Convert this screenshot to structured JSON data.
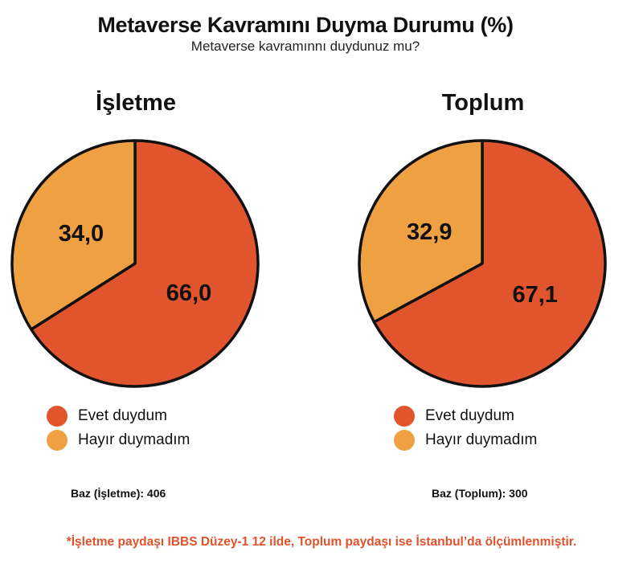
{
  "header": {
    "title": "Metaverse Kavramını Duyma Durumu (%)",
    "subtitle": "Metaverse kavramınnı duydunuz mu?"
  },
  "colors": {
    "yes": "#e1552e",
    "no": "#eea042",
    "outline": "#111111",
    "footnote": "#e0522b"
  },
  "chart_data": [
    {
      "type": "pie",
      "title": "İşletme",
      "categories": [
        "Evet duydum",
        "Hayır duymadım"
      ],
      "values": [
        66.0,
        34.0
      ],
      "value_labels": [
        "66,0",
        "34,0"
      ],
      "legend": [
        "Evet duydum",
        "Hayır duymadım"
      ],
      "base": "Baz (İşletme): 406"
    },
    {
      "type": "pie",
      "title": "Toplum",
      "categories": [
        "Evet duydum",
        "Hayır duymadım"
      ],
      "values": [
        67.1,
        32.9
      ],
      "value_labels": [
        "67,1",
        "32,9"
      ],
      "legend": [
        "Evet duydum",
        "Hayır duymadım"
      ],
      "base": "Baz (Toplum): 300"
    }
  ],
  "footnote": "*İşletme paydaşı IBBS Düzey-1 12 ilde, Toplum paydaşı ise İstanbul’da ölçümlenmiştir."
}
